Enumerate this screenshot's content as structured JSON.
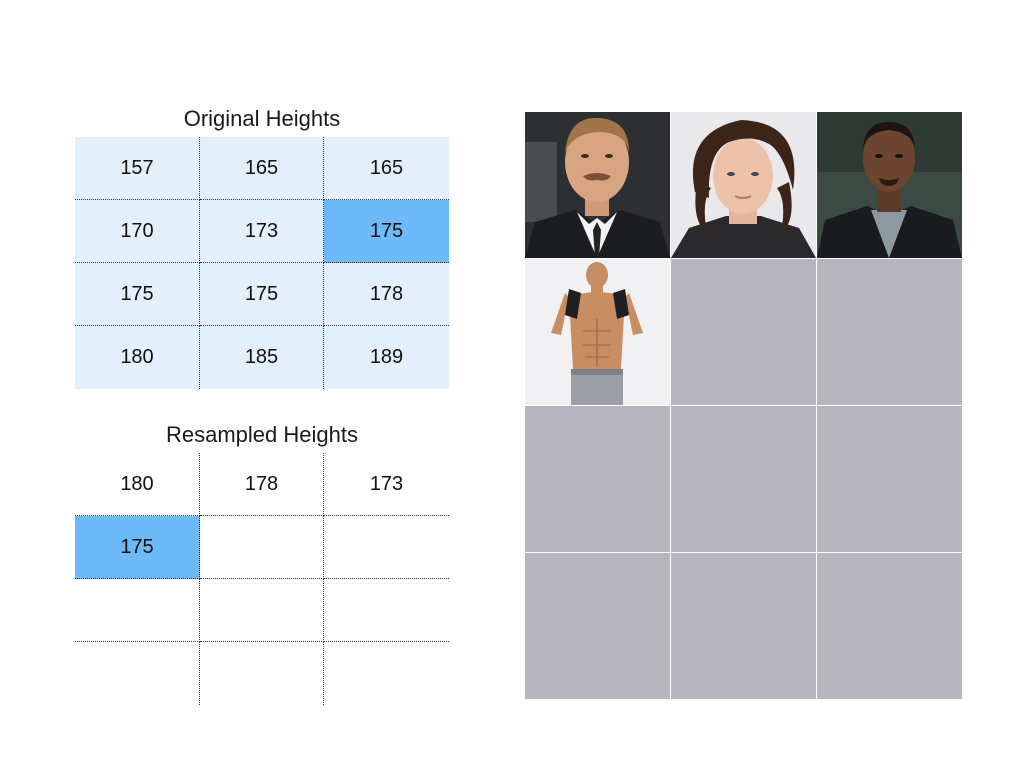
{
  "original": {
    "title": "Original Heights",
    "rows": [
      [
        "157",
        "165",
        "165"
      ],
      [
        "170",
        "173",
        "175"
      ],
      [
        "175",
        "175",
        "178"
      ],
      [
        "180",
        "185",
        "189"
      ]
    ]
  },
  "resampled": {
    "title": "Resampled Heights",
    "rows": [
      [
        "180",
        "178",
        "173"
      ],
      [
        "175",
        "",
        ""
      ],
      [
        "",
        "",
        ""
      ],
      [
        "",
        "",
        ""
      ]
    ]
  },
  "photos": {
    "tiles": [
      "portrait-man-suit",
      "portrait-man-curly-hair",
      "portrait-man-dark-suit",
      "fitness-model",
      "empty",
      "empty",
      "empty",
      "empty",
      "empty",
      "empty",
      "empty",
      "empty"
    ]
  },
  "colors": {
    "table_bg": "#e3f0fc",
    "highlight": "#6eb9f7",
    "empty_tile": "#b6b5bf"
  }
}
